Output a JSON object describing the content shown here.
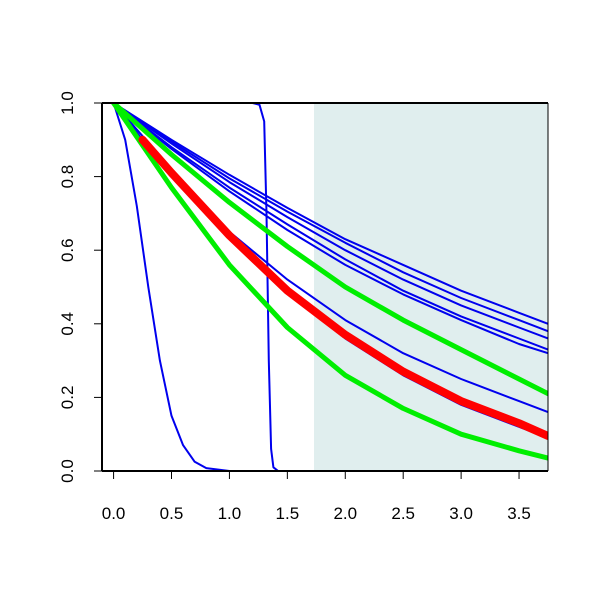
{
  "chart_data": {
    "type": "line",
    "title": "",
    "xlabel": "",
    "ylabel": "",
    "xlim": [
      -0.1,
      3.75
    ],
    "ylim": [
      0.0,
      1.0
    ],
    "x_ticks": [
      0.0,
      0.5,
      1.0,
      1.5,
      2.0,
      2.5,
      3.0,
      3.5
    ],
    "x_tick_labels": [
      "0.0",
      "0.5",
      "1.0",
      "1.5",
      "2.0",
      "2.5",
      "3.0",
      "3.5"
    ],
    "y_ticks": [
      0.0,
      0.2,
      0.4,
      0.6,
      0.8,
      1.0
    ],
    "y_tick_labels": [
      "0.0",
      "0.2",
      "0.4",
      "0.6",
      "0.8",
      "1.0"
    ],
    "grid": false,
    "legend": "none",
    "shaded_region": {
      "x_start": 1.73,
      "x_end": 3.75,
      "color": "#e0eeee"
    },
    "series": [
      {
        "color": "#0000ee",
        "width": "thin",
        "x": [
          0.0,
          0.1,
          0.2,
          0.3,
          0.4,
          0.5,
          0.6,
          0.7,
          0.8,
          1.0,
          3.75
        ],
        "y": [
          1.0,
          0.9,
          0.72,
          0.5,
          0.3,
          0.15,
          0.07,
          0.025,
          0.008,
          0.0,
          0.0
        ]
      },
      {
        "color": "#0000ee",
        "width": "thin",
        "x": [
          0.0,
          1.2,
          1.26,
          1.3,
          1.32,
          1.34,
          1.36,
          1.38,
          1.42,
          3.75
        ],
        "y": [
          1.0,
          1.0,
          0.995,
          0.95,
          0.7,
          0.3,
          0.06,
          0.01,
          0.0,
          0.0
        ]
      },
      {
        "color": "#0000ee",
        "width": "thin",
        "x": [
          0.0,
          0.5,
          1.0,
          1.5,
          2.0,
          2.5,
          3.0,
          3.5,
          3.75
        ],
        "y": [
          1.0,
          0.9,
          0.805,
          0.715,
          0.63,
          0.56,
          0.49,
          0.43,
          0.4
        ]
      },
      {
        "color": "#0000ee",
        "width": "thin",
        "x": [
          0.0,
          0.5,
          1.0,
          1.5,
          2.0,
          2.5,
          3.0,
          3.5,
          3.75
        ],
        "y": [
          1.0,
          0.895,
          0.795,
          0.705,
          0.62,
          0.54,
          0.47,
          0.41,
          0.38
        ]
      },
      {
        "color": "#0000ee",
        "width": "thin",
        "x": [
          0.0,
          0.5,
          1.0,
          1.5,
          2.0,
          2.5,
          3.0,
          3.5,
          3.75
        ],
        "y": [
          1.0,
          0.89,
          0.785,
          0.69,
          0.6,
          0.52,
          0.45,
          0.39,
          0.36
        ]
      },
      {
        "color": "#0000ee",
        "width": "thin",
        "x": [
          0.0,
          0.5,
          1.0,
          1.5,
          2.0,
          2.5,
          3.0,
          3.5,
          3.75
        ],
        "y": [
          1.0,
          0.88,
          0.77,
          0.67,
          0.575,
          0.49,
          0.42,
          0.36,
          0.33
        ]
      },
      {
        "color": "#0000ee",
        "width": "thin",
        "x": [
          0.0,
          0.5,
          1.0,
          1.5,
          2.0,
          2.5,
          3.0,
          3.5,
          3.75
        ],
        "y": [
          1.0,
          0.875,
          0.76,
          0.655,
          0.56,
          0.48,
          0.41,
          0.345,
          0.32
        ]
      },
      {
        "color": "#0000ee",
        "width": "thin",
        "x": [
          0.0,
          0.5,
          1.0,
          1.5,
          2.0,
          2.5,
          3.0,
          3.5,
          3.75
        ],
        "y": [
          1.0,
          0.82,
          0.65,
          0.52,
          0.41,
          0.32,
          0.25,
          0.19,
          0.16
        ]
      },
      {
        "color": "#0000ee",
        "width": "thin",
        "x": [
          0.0,
          0.5,
          1.0,
          1.5,
          2.0,
          2.5,
          3.0,
          3.5,
          3.75
        ],
        "y": [
          1.0,
          0.8,
          0.63,
          0.485,
          0.36,
          0.26,
          0.18,
          0.12,
          0.09
        ]
      },
      {
        "color": "#00ee00",
        "width": "thick",
        "x": [
          0.0,
          0.5,
          1.0,
          1.5,
          2.0,
          2.5,
          3.0,
          3.5,
          3.75
        ],
        "y": [
          1.0,
          0.86,
          0.73,
          0.61,
          0.5,
          0.41,
          0.33,
          0.25,
          0.21
        ]
      },
      {
        "color": "#00ee00",
        "width": "thick",
        "x": [
          0.0,
          0.5,
          1.0,
          1.5,
          2.0,
          2.5,
          3.0,
          3.5,
          3.75
        ],
        "y": [
          1.0,
          0.77,
          0.56,
          0.39,
          0.26,
          0.17,
          0.1,
          0.055,
          0.035
        ]
      },
      {
        "color": "#ff0000",
        "width": "extra-thick",
        "x": [
          0.25,
          0.5,
          1.0,
          1.5,
          2.0,
          2.5,
          3.0,
          3.5,
          3.75
        ],
        "y": [
          0.9,
          0.81,
          0.64,
          0.49,
          0.37,
          0.27,
          0.19,
          0.13,
          0.095
        ]
      }
    ]
  }
}
